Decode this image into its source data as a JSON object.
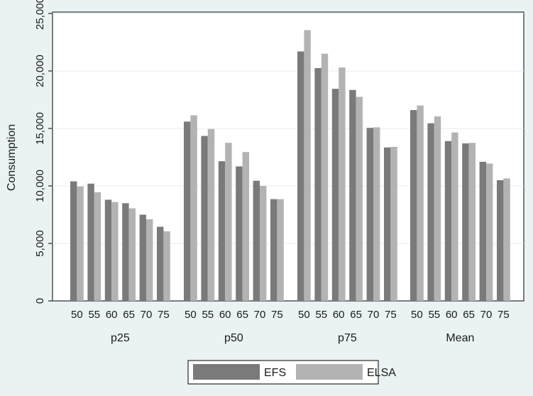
{
  "chart_data": {
    "type": "bar",
    "title": "",
    "xlabel": "",
    "ylabel": "Consumption",
    "ylim": [
      0,
      25000
    ],
    "yticks": [
      0,
      5000,
      10000,
      15000,
      20000,
      25000
    ],
    "ytick_labels": [
      "0",
      "5,000",
      "10,000",
      "15,000",
      "20,000",
      "25,000"
    ],
    "grid": true,
    "legend_position": "bottom",
    "groups": [
      "p25",
      "p50",
      "p75",
      "Mean"
    ],
    "categories": [
      "50",
      "55",
      "60",
      "65",
      "70",
      "75"
    ],
    "series": [
      {
        "name": "EFS",
        "color": "#7a7a7a",
        "values": [
          [
            10400,
            10200,
            8800,
            8500,
            7500,
            6450
          ],
          [
            15600,
            14350,
            12150,
            11700,
            10450,
            8850
          ],
          [
            21700,
            20250,
            18450,
            18350,
            15050,
            13350
          ],
          [
            16600,
            15450,
            13900,
            13700,
            12100,
            10500
          ]
        ]
      },
      {
        "name": "ELSA",
        "color": "#b3b3b3",
        "values": [
          [
            9950,
            9450,
            8600,
            8050,
            7100,
            6050
          ],
          [
            16150,
            14950,
            13750,
            12950,
            10000,
            8850
          ],
          [
            23550,
            21500,
            20300,
            17750,
            15100,
            13400
          ],
          [
            17000,
            16050,
            14650,
            13750,
            11950,
            10650
          ]
        ]
      }
    ]
  }
}
